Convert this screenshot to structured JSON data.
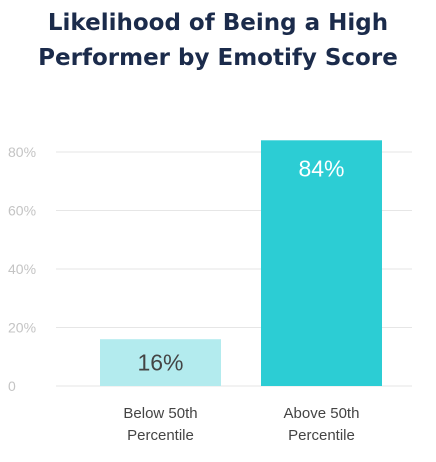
{
  "chart_data": {
    "type": "bar",
    "title_lines": [
      "Likelihood of Being a High",
      "Performer by Emotify Score"
    ],
    "categories": [
      [
        "Below 50th",
        "Percentile"
      ],
      [
        "Above 50th",
        "Percentile"
      ]
    ],
    "values": [
      16,
      84
    ],
    "data_labels": [
      "16%",
      "84%"
    ],
    "ylim": [
      0,
      87
    ],
    "yticks": [
      0,
      20,
      40,
      60,
      80
    ],
    "ytick_labels": [
      "0",
      "20%",
      "40%",
      "60%",
      "80%"
    ],
    "grid": true,
    "colors": {
      "bars": [
        "#b3ebee",
        "#2ccdd4"
      ],
      "data_label_colors": [
        "#444444",
        "#ffffff"
      ],
      "gridline": "#e6e6e6",
      "title": "#1b2b4b"
    },
    "xlabel": "",
    "ylabel": ""
  }
}
